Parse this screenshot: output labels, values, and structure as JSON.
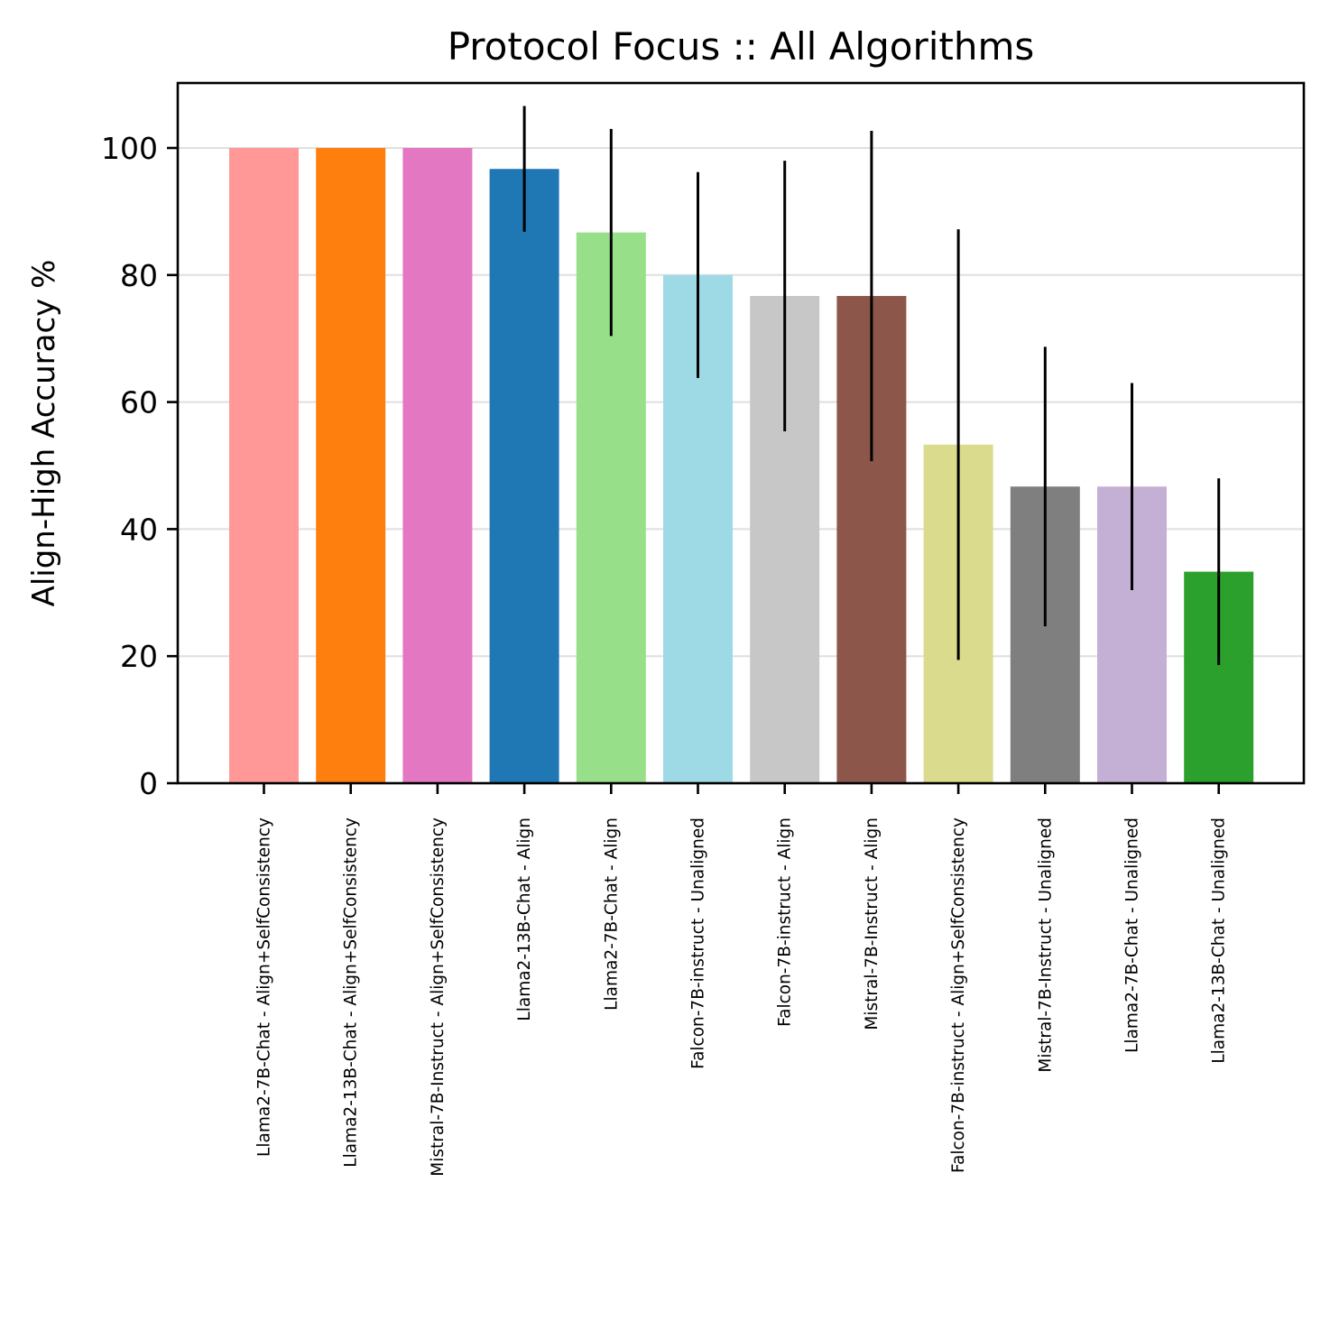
{
  "chart_data": {
    "type": "bar",
    "title": "Protocol Focus :: All Algorithms",
    "xlabel": "",
    "ylabel": "Align-High Accuracy %",
    "ylim": [
      0,
      110
    ],
    "yticks": [
      0,
      20,
      40,
      60,
      80,
      100
    ],
    "grid": {
      "y": true,
      "x": false
    },
    "categories": [
      "Llama2-7B-Chat - Align+SelfConsistency",
      "Llama2-13B-Chat - Align+SelfConsistency",
      "Mistral-7B-Instruct - Align+SelfConsistency",
      "Llama2-13B-Chat - Align",
      "Llama2-7B-Chat - Align",
      "Falcon-7B-instruct - Unaligned",
      "Falcon-7B-instruct - Align",
      "Mistral-7B-Instruct - Align",
      "Falcon-7B-instruct - Align+SelfConsistency",
      "Mistral-7B-Instruct - Unaligned",
      "Llama2-7B-Chat - Unaligned",
      "Llama2-13B-Chat - Unaligned"
    ],
    "values": [
      100.0,
      100.0,
      100.0,
      96.7,
      86.7,
      80.0,
      76.7,
      76.7,
      53.3,
      46.7,
      46.7,
      33.3
    ],
    "error_low": [
      100.0,
      100.0,
      100.0,
      86.8,
      70.4,
      63.8,
      55.4,
      50.7,
      19.4,
      24.7,
      30.4,
      18.6
    ],
    "error_high": [
      100.0,
      100.0,
      100.0,
      106.6,
      103.0,
      96.2,
      98.0,
      102.7,
      87.2,
      68.7,
      63.0,
      48.0
    ],
    "colors": [
      "#ff9896",
      "#ff7f0e",
      "#e377c2",
      "#1f77b4",
      "#98df8a",
      "#9edae5",
      "#c7c7c7",
      "#8c564b",
      "#dbdb8d",
      "#7f7f7f",
      "#c5b0d5",
      "#2ca02c"
    ]
  }
}
